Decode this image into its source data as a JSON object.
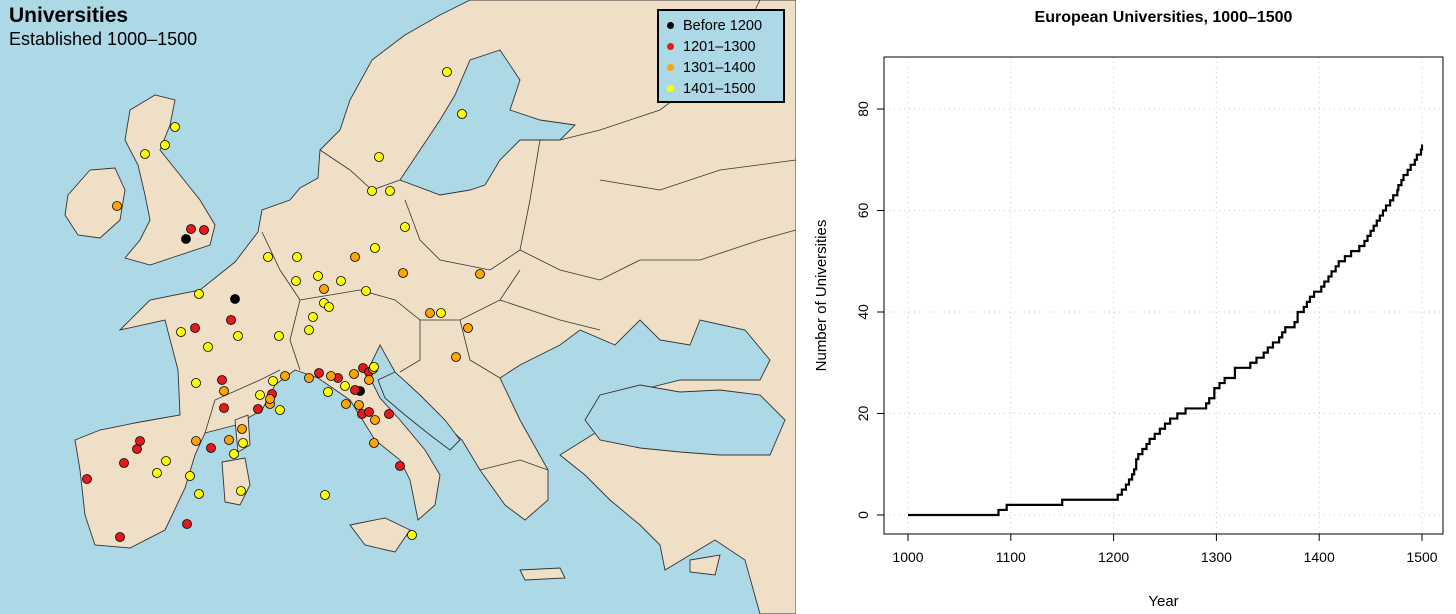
{
  "map": {
    "title": "Universities",
    "subtitle": "Established 1000–1500",
    "legend": [
      {
        "label": "Before 1200",
        "color": "#000000"
      },
      {
        "label": "1201–1300",
        "color": "#e41a1c"
      },
      {
        "label": "1301–1400",
        "color": "#ffa500"
      },
      {
        "label": "1401–1500",
        "color": "#ffff00"
      }
    ],
    "colors": {
      "sea": "#add8e6",
      "land": "#efdfc7",
      "border": "#333333"
    }
  },
  "chart_data": {
    "type": "line",
    "title": "European Universities, 1000–1500",
    "xlabel": "Year",
    "ylabel": "Number of Universities",
    "xlim": [
      1000,
      1500
    ],
    "ylim": [
      0,
      88
    ],
    "xticks": [
      1000,
      1100,
      1200,
      1300,
      1400,
      1500
    ],
    "yticks": [
      0,
      20,
      40,
      60,
      80
    ],
    "grid": true,
    "line_color": "#000000",
    "series": [
      {
        "step": true,
        "x": [
          1000,
          1088,
          1096,
          1150,
          1204,
          1208,
          1212,
          1215,
          1218,
          1220,
          1222,
          1224,
          1228,
          1232,
          1235,
          1240,
          1245,
          1250,
          1255,
          1262,
          1270,
          1290,
          1293,
          1298,
          1303,
          1308,
          1318,
          1333,
          1339,
          1346,
          1350,
          1355,
          1361,
          1364,
          1367,
          1376,
          1379,
          1385,
          1388,
          1391,
          1395,
          1402,
          1405,
          1409,
          1412,
          1416,
          1419,
          1425,
          1431,
          1439,
          1444,
          1447,
          1450,
          1453,
          1456,
          1459,
          1462,
          1465,
          1469,
          1472,
          1476,
          1477,
          1480,
          1482,
          1486,
          1489,
          1493,
          1495,
          1499,
          1500
        ],
        "y": [
          0,
          1,
          2,
          3,
          4,
          5,
          6,
          7,
          8,
          9,
          11,
          12,
          13,
          14,
          15,
          16,
          17,
          18,
          19,
          20,
          21,
          22,
          23,
          25,
          26,
          27,
          29,
          30,
          31,
          32,
          33,
          34,
          35,
          36,
          37,
          38,
          40,
          41,
          42,
          43,
          44,
          45,
          46,
          47,
          48,
          49,
          50,
          51,
          52,
          53,
          54,
          55,
          56,
          57,
          58,
          59,
          60,
          61,
          62,
          63,
          64,
          65,
          66,
          67,
          68,
          69,
          70,
          71,
          72,
          73
        ]
      }
    ]
  }
}
